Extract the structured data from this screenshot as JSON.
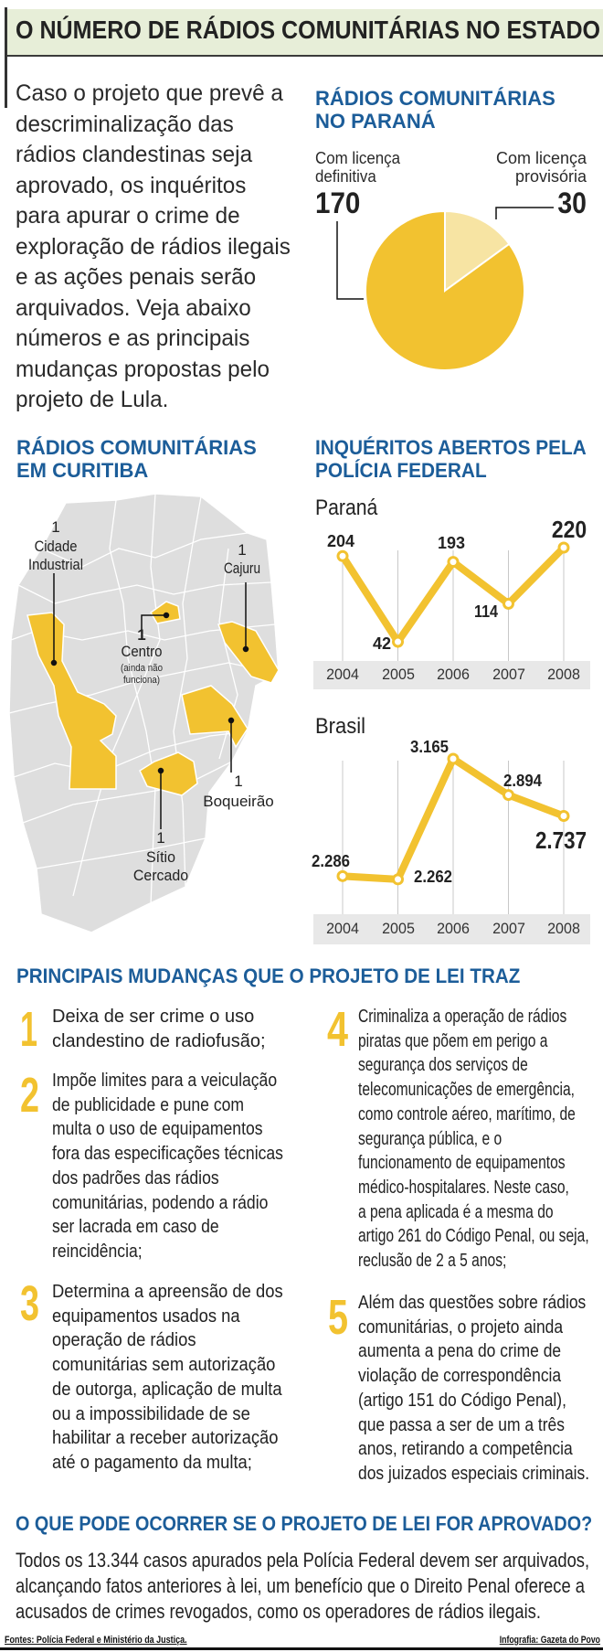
{
  "title": "O NÚMERO DE RÁDIOS COMUNITÁRIAS NO ESTADO",
  "intro": "Caso o projeto que prevê a\ndescriminalização das\nrádios clandestinas seja\naprovado, os inquéritos\npara apurar o crime de\nexploração de rádios ilegais\ne as ações penais serão\narquivados. Veja abaixo\nnúmeros e as principais\nmudanças propostas pelo\nprojeto de Lula.",
  "colors": {
    "accent_yellow": "#f2c230",
    "light_yellow": "#f7e4a3",
    "heading_blue": "#1c5d99",
    "map_gray": "#dedede",
    "band_green": "#e7eed8"
  },
  "pie_section": {
    "heading": "RÁDIOS COMUNITÁRIAS\nNO PARANÁ",
    "definitiva_label": "Com licença\ndefinitiva",
    "definitiva_value": "170",
    "provisoria_label": "Com licença\nprovisória",
    "provisoria_value": "30"
  },
  "map_section": {
    "heading": "RÁDIOS COMUNITÁRIAS\nEM CURITIBA",
    "regions": [
      {
        "count": "1",
        "name": "Cidade\nIndustrial"
      },
      {
        "count": "1",
        "name": "Cajuru"
      },
      {
        "count": "1",
        "name": "Centro",
        "note": "(ainda não\nfunciona)"
      },
      {
        "count": "1",
        "name": "Boqueirão"
      },
      {
        "count": "1",
        "name": "Sítio\nCercado"
      }
    ]
  },
  "inquiries_section": {
    "heading": "INQUÉRITOS ABERTOS PELA\nPOLÍCIA FEDERAL"
  },
  "chart_data": [
    {
      "type": "pie",
      "title": "RÁDIOS COMUNITÁRIAS NO PARANÁ",
      "slices": [
        {
          "label": "Com licença definitiva",
          "value": 170,
          "color": "#f2c230"
        },
        {
          "label": "Com licença provisória",
          "value": 30,
          "color": "#f7e4a3"
        }
      ]
    },
    {
      "type": "line",
      "title": "Paraná",
      "categories": [
        "2004",
        "2005",
        "2006",
        "2007",
        "2008"
      ],
      "values": [
        204,
        42,
        193,
        114,
        220
      ],
      "labels": [
        "204",
        "42",
        "193",
        "114",
        "220"
      ],
      "grid": "vertical",
      "color": "#f2c230"
    },
    {
      "type": "line",
      "title": "Brasil",
      "categories": [
        "2004",
        "2005",
        "2006",
        "2007",
        "2008"
      ],
      "values": [
        2286,
        2262,
        3165,
        2894,
        2737
      ],
      "labels": [
        "2.286",
        "2.262",
        "3.165",
        "2.894",
        "2.737"
      ],
      "grid": "vertical",
      "color": "#f2c230"
    }
  ],
  "changes": {
    "heading": "PRINCIPAIS MUDANÇAS QUE O PROJETO DE LEI TRAZ",
    "items": [
      {
        "number": "1",
        "text": "Deixa de ser crime o uso\nclandestino de radiofusão;"
      },
      {
        "number": "2",
        "text": "Impõe limites para a veiculação\nde publicidade e pune com\nmulta o uso de equipamentos\nfora das especificações técnicas\ndos padrões das rádios\ncomunitárias, podendo a rádio\nser lacrada em caso de\nreincidência;"
      },
      {
        "number": "3",
        "text": "Determina a apreensão de dos\nequipamentos usados na\noperação de rádios\ncomunitárias sem autorização\nde outorga, aplicação de multa\nou a impossibilidade de se\nhabilitar a receber autorização\naté o pagamento da multa;"
      },
      {
        "number": "4",
        "text": "Criminaliza a operação de rádios\npiratas que põem em perigo a\nsegurança dos serviços de\ntelecomunicações de emergência,\ncomo controle aéreo, marítimo, de\nsegurança pública, e o\nfuncionamento de equipamentos\nmédico-hospitalares. Neste caso,\na pena aplicada é a mesma do\nartigo 261 do Código Penal, ou seja,\nreclusão de 2 a 5 anos;"
      },
      {
        "number": "5",
        "text": "Além das questões sobre rádios\ncomunitárias, o projeto ainda\naumenta a pena do crime de\nviolação de correspondência\n(artigo 151 do Código Penal),\nque passa a ser de um a três\nanos, retirando a competência\ndos juizados especiais criminais."
      }
    ]
  },
  "outcome": {
    "heading": "O QUE PODE OCORRER SE O PROJETO DE LEI FOR APROVADO?",
    "text": "Todos os 13.344 casos apurados pela Polícia Federal devem ser arquivados,\nalcançando fatos anteriores à lei, um benefício que o Direito Penal oferece a\nacusados de crimes revogados, como os operadores de rádios ilegais."
  },
  "footer": {
    "sources": "Fontes: Polícia Federal e Ministério da Justiça.",
    "credit": "Infografia: Gazeta do Povo"
  }
}
